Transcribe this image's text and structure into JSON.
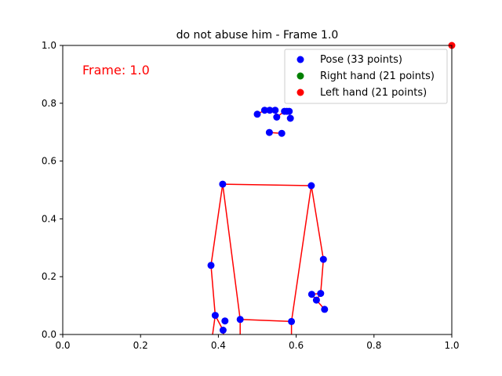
{
  "chart_data": {
    "type": "scatter",
    "title": "do not abuse him - Frame 1.0",
    "annotation": "Frame: 1.0",
    "xlim": [
      0,
      1
    ],
    "ylim": [
      0,
      1
    ],
    "x_ticks": [
      "0.0",
      "0.2",
      "0.4",
      "0.6",
      "0.8",
      "1.0"
    ],
    "y_ticks": [
      "0.0",
      "0.2",
      "0.4",
      "0.6",
      "0.8",
      "1.0"
    ],
    "grid": false,
    "legend_position": "top-right",
    "colors": {
      "pose": "#0000ff",
      "right_hand": "#008000",
      "left_hand": "#ff0000",
      "skeleton": "#ff0000",
      "annotation": "#ff0000"
    },
    "series": [
      {
        "name": "Pose (33 points)",
        "points": [
          [
            0.55,
            0.752
          ],
          [
            0.57,
            0.772
          ],
          [
            0.576,
            0.772
          ],
          [
            0.582,
            0.772
          ],
          [
            0.546,
            0.776
          ],
          [
            0.532,
            0.776
          ],
          [
            0.519,
            0.776
          ],
          [
            0.585,
            0.748
          ],
          [
            0.5,
            0.762
          ],
          [
            0.563,
            0.696
          ],
          [
            0.531,
            0.699
          ],
          [
            0.639,
            0.515
          ],
          [
            0.411,
            0.52
          ],
          [
            0.67,
            0.26
          ],
          [
            0.381,
            0.239
          ],
          [
            0.64,
            0.139
          ],
          [
            0.652,
            0.119
          ],
          [
            0.663,
            0.142
          ],
          [
            0.673,
            0.087
          ],
          [
            0.392,
            0.066
          ],
          [
            0.417,
            0.047
          ],
          [
            0.412,
            0.015
          ],
          [
            0.588,
            0.045
          ],
          [
            0.456,
            0.052
          ]
        ]
      },
      {
        "name": "Right hand (21 points)",
        "points": []
      },
      {
        "name": "Left hand (21 points)",
        "points": [
          [
            1.0,
            1.0
          ]
        ]
      }
    ],
    "skeleton_lines": [
      [
        [
          0.532,
          0.776
        ],
        [
          0.546,
          0.776
        ],
        [
          0.55,
          0.752
        ],
        [
          0.57,
          0.772
        ],
        [
          0.582,
          0.772
        ],
        [
          0.585,
          0.748
        ]
      ],
      [
        [
          0.519,
          0.776
        ],
        [
          0.5,
          0.762
        ]
      ],
      [
        [
          0.531,
          0.699
        ],
        [
          0.563,
          0.696
        ]
      ],
      [
        [
          0.411,
          0.52
        ],
        [
          0.639,
          0.515
        ]
      ],
      [
        [
          0.411,
          0.52
        ],
        [
          0.381,
          0.239
        ],
        [
          0.392,
          0.066
        ],
        [
          0.412,
          0.015
        ],
        [
          0.417,
          -0.05
        ]
      ],
      [
        [
          0.392,
          0.066
        ],
        [
          0.38,
          -0.05
        ]
      ],
      [
        [
          0.411,
          0.52
        ],
        [
          0.456,
          0.052
        ],
        [
          0.588,
          0.045
        ]
      ],
      [
        [
          0.456,
          0.052
        ],
        [
          0.456,
          -0.05
        ]
      ],
      [
        [
          0.639,
          0.515
        ],
        [
          0.588,
          0.045
        ],
        [
          0.588,
          -0.05
        ]
      ],
      [
        [
          0.639,
          0.515
        ],
        [
          0.67,
          0.26
        ],
        [
          0.663,
          0.142
        ],
        [
          0.64,
          0.139
        ],
        [
          0.652,
          0.119
        ],
        [
          0.673,
          0.087
        ]
      ],
      [
        [
          0.663,
          0.142
        ],
        [
          0.652,
          0.119
        ]
      ]
    ]
  }
}
